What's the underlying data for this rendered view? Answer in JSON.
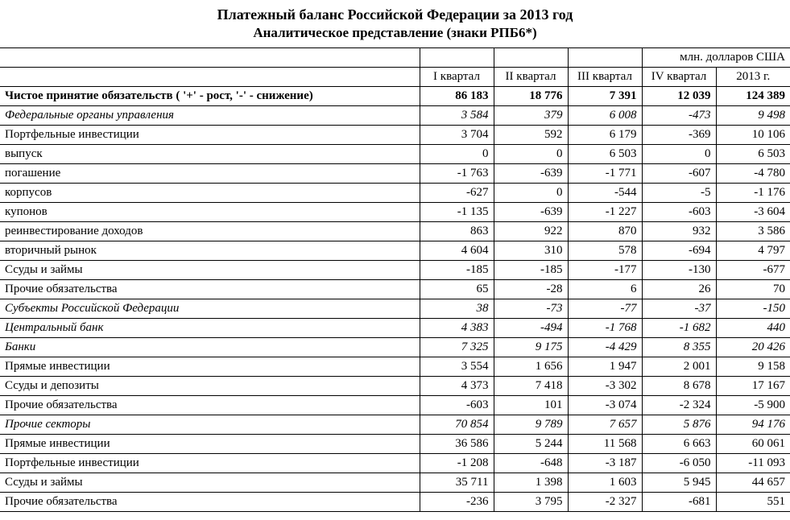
{
  "title": {
    "line1": "Платежный баланс Российской Федерации за 2013 год",
    "line2": "Аналитическое представление (знаки РПБ6*)"
  },
  "unit_label": "млн. долларов США",
  "columns": {
    "q1": "I квартал",
    "q2": "II квартал",
    "q3": "III квартал",
    "q4": "IV квартал",
    "year": "2013 г."
  },
  "rows": [
    {
      "label": "Чистое принятие обязательств ( '+' - рост, '-' - снижение)",
      "indent": 0,
      "bold": true,
      "italic": false,
      "q1": "86 183",
      "q2": "18 776",
      "q3": "7 391",
      "q4": "12 039",
      "year": "124 389"
    },
    {
      "label": "Федеральные органы управления",
      "indent": 1,
      "bold": false,
      "italic": true,
      "q1": "3 584",
      "q2": "379",
      "q3": "6 008",
      "q4": "-473",
      "year": "9 498"
    },
    {
      "label": "Портфельные инвестиции",
      "indent": 2,
      "bold": false,
      "italic": false,
      "q1": "3 704",
      "q2": "592",
      "q3": "6 179",
      "q4": "-369",
      "year": "10 106"
    },
    {
      "label": "выпуск",
      "indent": 3,
      "bold": false,
      "italic": false,
      "q1": "0",
      "q2": "0",
      "q3": "6 503",
      "q4": "0",
      "year": "6 503"
    },
    {
      "label": "погашение",
      "indent": 3,
      "bold": false,
      "italic": false,
      "q1": "-1 763",
      "q2": "-639",
      "q3": "-1 771",
      "q4": "-607",
      "year": "-4 780"
    },
    {
      "label": "корпусов",
      "indent": 4,
      "bold": false,
      "italic": false,
      "q1": "-627",
      "q2": "0",
      "q3": "-544",
      "q4": "-5",
      "year": "-1 176"
    },
    {
      "label": "купонов",
      "indent": 4,
      "bold": false,
      "italic": false,
      "q1": "-1 135",
      "q2": "-639",
      "q3": "-1 227",
      "q4": "-603",
      "year": "-3 604"
    },
    {
      "label": "реинвестирование доходов",
      "indent": 3,
      "bold": false,
      "italic": false,
      "q1": "863",
      "q2": "922",
      "q3": "870",
      "q4": "932",
      "year": "3 586"
    },
    {
      "label": "вторичный рынок",
      "indent": 3,
      "bold": false,
      "italic": false,
      "q1": "4 604",
      "q2": "310",
      "q3": "578",
      "q4": "-694",
      "year": "4 797"
    },
    {
      "label": "Ссуды и займы",
      "indent": 2,
      "bold": false,
      "italic": false,
      "q1": "-185",
      "q2": "-185",
      "q3": "-177",
      "q4": "-130",
      "year": "-677"
    },
    {
      "label": "Прочие обязательства",
      "indent": 2,
      "bold": false,
      "italic": false,
      "q1": "65",
      "q2": "-28",
      "q3": "6",
      "q4": "26",
      "year": "70"
    },
    {
      "label": "Субъекты Российской Федерации",
      "indent": 1,
      "bold": false,
      "italic": true,
      "q1": "38",
      "q2": "-73",
      "q3": "-77",
      "q4": "-37",
      "year": "-150"
    },
    {
      "label": "Центральный банк",
      "indent": 1,
      "bold": false,
      "italic": true,
      "q1": "4 383",
      "q2": "-494",
      "q3": "-1 768",
      "q4": "-1 682",
      "year": "440"
    },
    {
      "label": "Банки",
      "indent": 1,
      "bold": false,
      "italic": true,
      "q1": "7 325",
      "q2": "9 175",
      "q3": "-4 429",
      "q4": "8 355",
      "year": "20 426"
    },
    {
      "label": "Прямые инвестиции",
      "indent": 2,
      "bold": false,
      "italic": false,
      "q1": "3 554",
      "q2": "1 656",
      "q3": "1 947",
      "q4": "2 001",
      "year": "9 158"
    },
    {
      "label": "Ссуды и депозиты",
      "indent": 2,
      "bold": false,
      "italic": false,
      "q1": "4 373",
      "q2": "7 418",
      "q3": "-3 302",
      "q4": "8 678",
      "year": "17 167"
    },
    {
      "label": "Прочие обязательства",
      "indent": 2,
      "bold": false,
      "italic": false,
      "q1": "-603",
      "q2": "101",
      "q3": "-3 074",
      "q4": "-2 324",
      "year": "-5 900"
    },
    {
      "label": "Прочие секторы",
      "indent": 1,
      "bold": false,
      "italic": true,
      "q1": "70 854",
      "q2": "9 789",
      "q3": "7 657",
      "q4": "5 876",
      "year": "94 176"
    },
    {
      "label": "Прямые инвестиции",
      "indent": 2,
      "bold": false,
      "italic": false,
      "q1": "36 586",
      "q2": "5 244",
      "q3": "11 568",
      "q4": "6 663",
      "year": "60 061"
    },
    {
      "label": "Портфельные инвестиции",
      "indent": 2,
      "bold": false,
      "italic": false,
      "q1": "-1 208",
      "q2": "-648",
      "q3": "-3 187",
      "q4": "-6 050",
      "year": "-11 093"
    },
    {
      "label": "Ссуды и займы",
      "indent": 2,
      "bold": false,
      "italic": false,
      "q1": "35 711",
      "q2": "1 398",
      "q3": "1 603",
      "q4": "5 945",
      "year": "44 657"
    },
    {
      "label": "Прочие обязательства",
      "indent": 2,
      "bold": false,
      "italic": false,
      "q1": "-236",
      "q2": "3 795",
      "q3": "-2 327",
      "q4": "-681",
      "year": "551"
    }
  ]
}
